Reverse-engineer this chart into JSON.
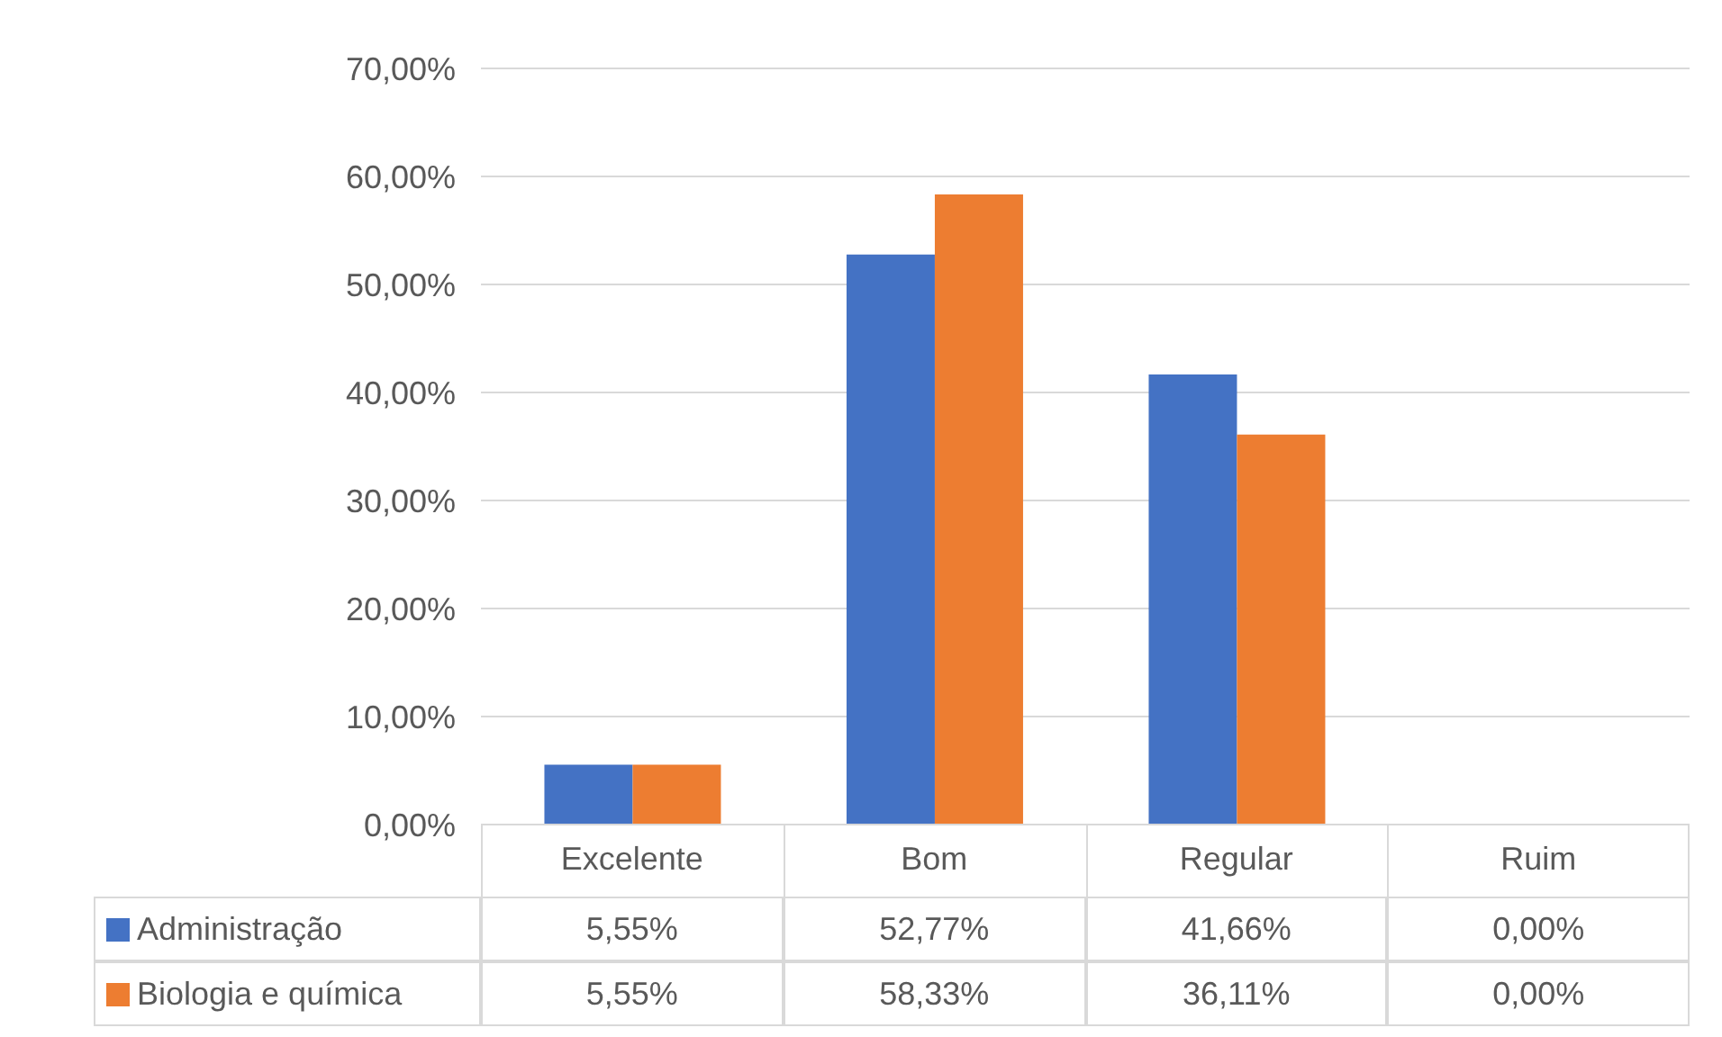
{
  "chart_data": {
    "type": "bar",
    "categories": [
      "Excelente",
      "Bom",
      "Regular",
      "Ruim"
    ],
    "series": [
      {
        "name": "Administração",
        "color": "#4472c4",
        "values": [
          5.55,
          52.77,
          41.66,
          0
        ],
        "value_labels": [
          "5,55%",
          "52,77%",
          "41,66%",
          "0,00%"
        ]
      },
      {
        "name": "Biologia e química",
        "color": "#ed7d31",
        "values": [
          5.55,
          58.33,
          36.11,
          0
        ],
        "value_labels": [
          "5,55%",
          "58,33%",
          "36,11%",
          "0,00%"
        ]
      }
    ],
    "ylim": [
      0,
      70
    ],
    "yticks": [
      {
        "value": 0,
        "label": "0,00%"
      },
      {
        "value": 10,
        "label": "10,00%"
      },
      {
        "value": 20,
        "label": "20,00%"
      },
      {
        "value": 30,
        "label": "30,00%"
      },
      {
        "value": 40,
        "label": "40,00%"
      },
      {
        "value": 50,
        "label": "50,00%"
      },
      {
        "value": 60,
        "label": "60,00%"
      },
      {
        "value": 70,
        "label": "70,00%"
      }
    ],
    "grid": "y",
    "legend": "bottom"
  }
}
